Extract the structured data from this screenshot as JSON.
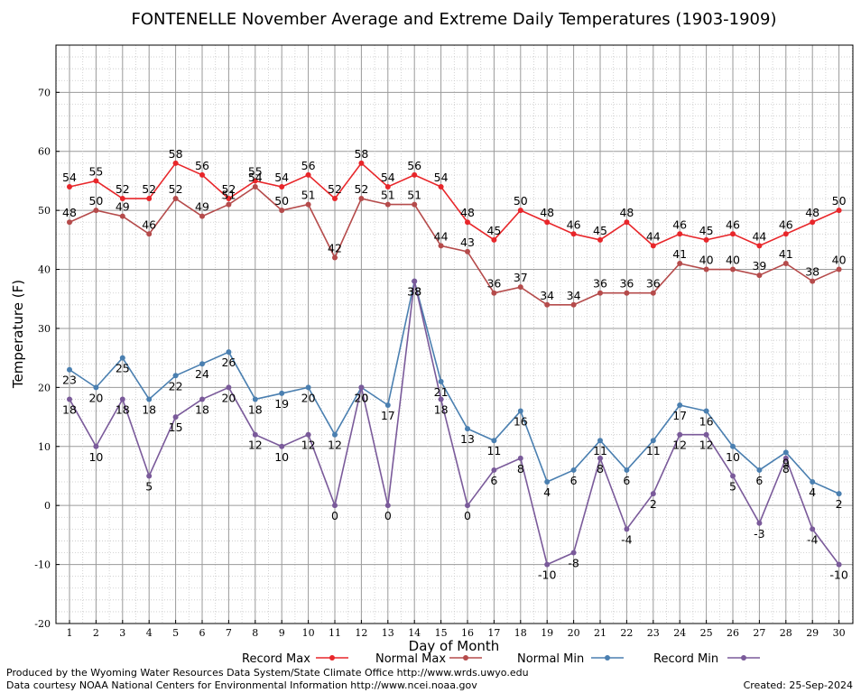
{
  "chart_data": {
    "type": "line",
    "title": "FONTENELLE November Average and Extreme Daily Temperatures (1903-1909)",
    "xlabel": "Day of Month",
    "ylabel": "Temperature (F)",
    "x": [
      1,
      2,
      3,
      4,
      5,
      6,
      7,
      8,
      9,
      10,
      11,
      12,
      13,
      14,
      15,
      16,
      17,
      18,
      19,
      20,
      21,
      22,
      23,
      24,
      25,
      26,
      27,
      28,
      29,
      30
    ],
    "ylim": [
      -20,
      78
    ],
    "yticks": [
      -20,
      -10,
      0,
      10,
      20,
      30,
      40,
      50,
      60,
      70
    ],
    "grid": true,
    "legend_position": "bottom",
    "series": [
      {
        "name": "Record Max",
        "color": "#e8262a",
        "values": [
          54,
          55,
          52,
          52,
          58,
          56,
          52,
          55,
          54,
          56,
          52,
          58,
          54,
          56,
          54,
          48,
          45,
          50,
          48,
          46,
          45,
          48,
          44,
          46,
          45,
          46,
          44,
          46,
          48,
          50
        ]
      },
      {
        "name": "Normal Max",
        "color": "#b54b4b",
        "values": [
          48,
          50,
          49,
          46,
          52,
          49,
          51,
          54,
          50,
          51,
          42,
          52,
          51,
          51,
          44,
          43,
          36,
          37,
          34,
          34,
          36,
          36,
          36,
          41,
          40,
          40,
          39,
          41,
          38,
          40
        ]
      },
      {
        "name": "Normal Min",
        "color": "#4a7fb0",
        "values": [
          23,
          20,
          25,
          18,
          22,
          24,
          26,
          18,
          19,
          20,
          12,
          20,
          17,
          38,
          21,
          13,
          11,
          16,
          4,
          6,
          11,
          6,
          11,
          17,
          16,
          10,
          6,
          9,
          4,
          2
        ]
      },
      {
        "name": "Record Min",
        "color": "#7a5a9a",
        "values": [
          18,
          10,
          18,
          5,
          15,
          18,
          20,
          12,
          10,
          12,
          0,
          20,
          0,
          38,
          18,
          0,
          6,
          8,
          -10,
          -8,
          8,
          -4,
          2,
          12,
          12,
          5,
          -3,
          8,
          -4,
          -10
        ]
      }
    ]
  },
  "footer": {
    "produced_by": "Produced by the Wyoming Water Resources Data System/State Climate Office http://www.wrds.uwyo.edu",
    "data_courtesy": "Data courtesy NOAA National Centers for Environmental Information http://www.ncei.noaa.gov",
    "created": "Created: 25-Sep-2024"
  }
}
